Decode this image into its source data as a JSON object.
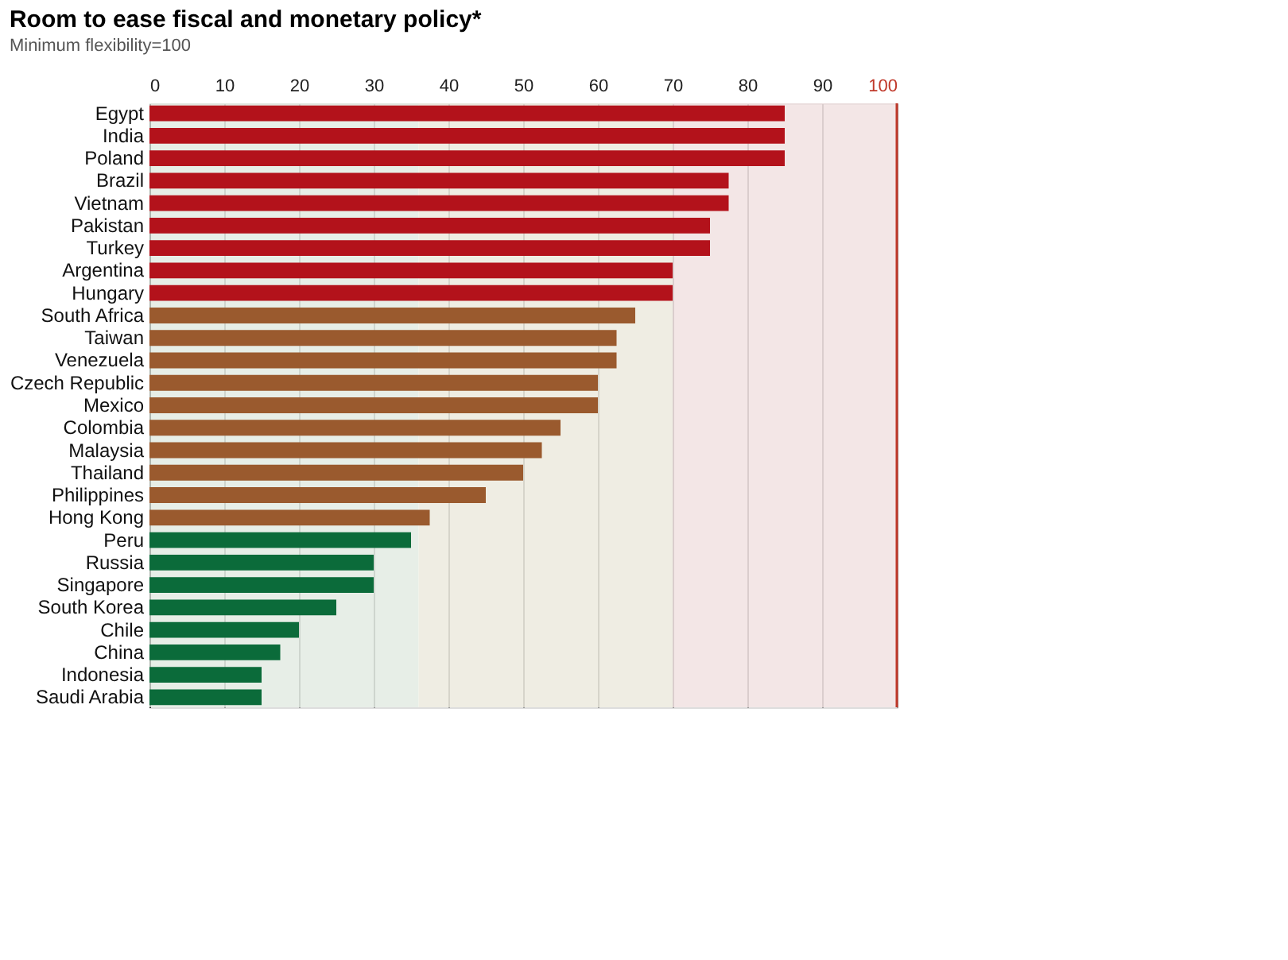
{
  "chart_data": {
    "type": "bar",
    "orientation": "horizontal",
    "title": "Room to ease fiscal and monetary policy*",
    "subtitle": "Minimum flexibility=100",
    "categories": [
      "Egypt",
      "India",
      "Poland",
      "Brazil",
      "Vietnam",
      "Pakistan",
      "Turkey",
      "Argentina",
      "Hungary",
      "South Africa",
      "Taiwan",
      "Venezuela",
      "Czech Republic",
      "Mexico",
      "Colombia",
      "Malaysia",
      "Thailand",
      "Philippines",
      "Hong Kong",
      "Peru",
      "Russia",
      "Singapore",
      "South Korea",
      "Chile",
      "China",
      "Indonesia",
      "Saudi Arabia"
    ],
    "values": [
      85,
      85,
      85,
      77.5,
      77.5,
      75,
      75,
      70,
      70,
      65,
      62.5,
      62.5,
      60,
      60,
      55,
      52.5,
      50,
      45,
      37.5,
      35,
      30,
      30,
      25,
      20,
      17.5,
      15,
      15
    ],
    "colors": [
      "#b3121b",
      "#b3121b",
      "#b3121b",
      "#b3121b",
      "#b3121b",
      "#b3121b",
      "#b3121b",
      "#b3121b",
      "#b3121b",
      "#9a5a2e",
      "#9a5a2e",
      "#9a5a2e",
      "#9a5a2e",
      "#9a5a2e",
      "#9a5a2e",
      "#9a5a2e",
      "#9a5a2e",
      "#9a5a2e",
      "#9a5a2e",
      "#0b6b3a",
      "#0b6b3a",
      "#0b6b3a",
      "#0b6b3a",
      "#0b6b3a",
      "#0b6b3a",
      "#0b6b3a",
      "#0b6b3a"
    ],
    "xlim": [
      0,
      100
    ],
    "xticks": [
      0,
      10,
      20,
      30,
      40,
      50,
      60,
      70,
      80,
      90,
      100
    ],
    "grid": "x",
    "bands": [
      {
        "axis": "x",
        "from": 0,
        "to": 36,
        "color": "#dfe8df"
      },
      {
        "axis": "x",
        "from": 36,
        "to": 70,
        "color": "#e9e7da"
      },
      {
        "axis": "x",
        "from": 70,
        "to": 100,
        "color": "#efdede"
      }
    ],
    "ref_lines": [
      {
        "axis": "x",
        "value": 100,
        "color": "#c0392b"
      }
    ]
  }
}
